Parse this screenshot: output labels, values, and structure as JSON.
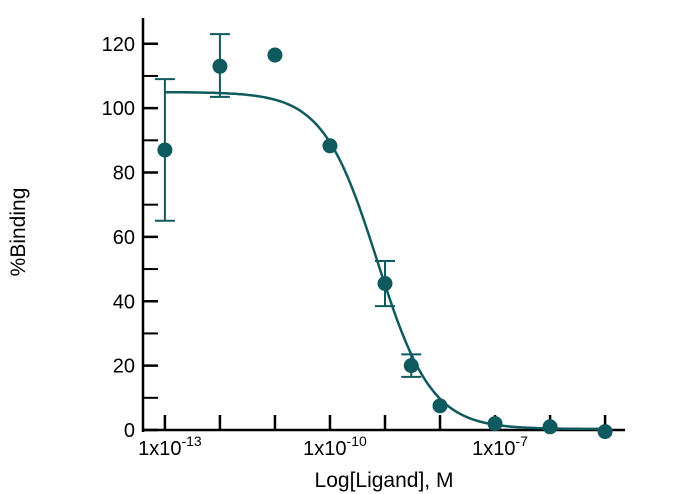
{
  "chart_data": {
    "type": "scatter",
    "title": "",
    "xlabel": "Log[Ligand],  M",
    "ylabel": "%Binding",
    "x_scale": "log",
    "xlim": [
      4e-14,
      2.3e-05
    ],
    "ylim": [
      0,
      128
    ],
    "grid": false,
    "legend": "none",
    "color": "#0f5a5e",
    "y_ticks": [
      0,
      20,
      40,
      60,
      80,
      100,
      120
    ],
    "y_tick_labels": [
      "0",
      "20",
      "40",
      "60",
      "80",
      "100",
      "120"
    ],
    "y_minor_ticks": [
      10,
      30,
      50,
      70,
      90,
      110
    ],
    "x_ticks": [
      1e-13,
      1e-12,
      1e-11,
      1e-10,
      1e-09,
      1e-08,
      1e-07,
      1e-06,
      1e-05
    ],
    "x_tick_labels": [
      {
        "value": 1e-13,
        "base": "1x10",
        "exp": "-13"
      },
      {
        "value": 1e-10,
        "base": "1x10",
        "exp": "-10"
      },
      {
        "value": 1e-07,
        "base": "1x10",
        "exp": "-7"
      }
    ],
    "points": [
      {
        "x": 1e-13,
        "y": 87,
        "err_low": 65,
        "err_high": 109
      },
      {
        "x": 1e-12,
        "y": 113,
        "err_low": 103.5,
        "err_high": 123
      },
      {
        "x": 1e-11,
        "y": 116.5
      },
      {
        "x": 1e-10,
        "y": 88.3
      },
      {
        "x": 1e-09,
        "y": 45.5,
        "err_low": 38.5,
        "err_high": 52.5
      },
      {
        "x": 3e-09,
        "y": 20,
        "err_low": 16.5,
        "err_high": 23.5
      },
      {
        "x": 1e-08,
        "y": 7.5
      },
      {
        "x": 1e-07,
        "y": 2
      },
      {
        "x": 1e-06,
        "y": 1
      },
      {
        "x": 1e-05,
        "y": -0.5
      }
    ],
    "fit_curve": {
      "model": "sigmoidal dose-response",
      "top": 105,
      "bottom": 0.3,
      "ic50": 7.2e-10,
      "hill": 0.88,
      "x_range": [
        1e-13,
        1e-05
      ]
    }
  }
}
